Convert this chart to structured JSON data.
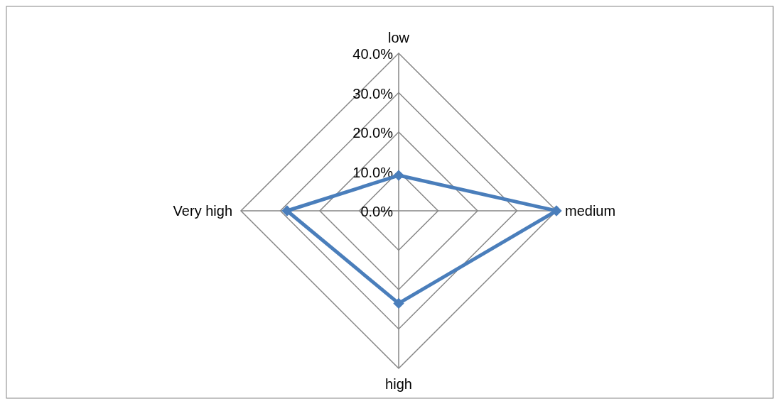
{
  "chart_data": {
    "type": "radar",
    "categories": [
      "low",
      "medium",
      "high",
      "Very high"
    ],
    "series": [
      {
        "color": "#4a7ebb",
        "values": [
          9,
          40,
          23.5,
          28.3
        ]
      }
    ],
    "ylim": [
      0,
      40
    ],
    "yticks": [
      {
        "value": 0,
        "label": "0.0%"
      },
      {
        "value": 10,
        "label": "10.0%"
      },
      {
        "value": 20,
        "label": "20.0%"
      },
      {
        "value": 30,
        "label": "30.0%"
      },
      {
        "value": 40,
        "label": "40.0%"
      }
    ],
    "grid": true,
    "marker": "diamond"
  }
}
